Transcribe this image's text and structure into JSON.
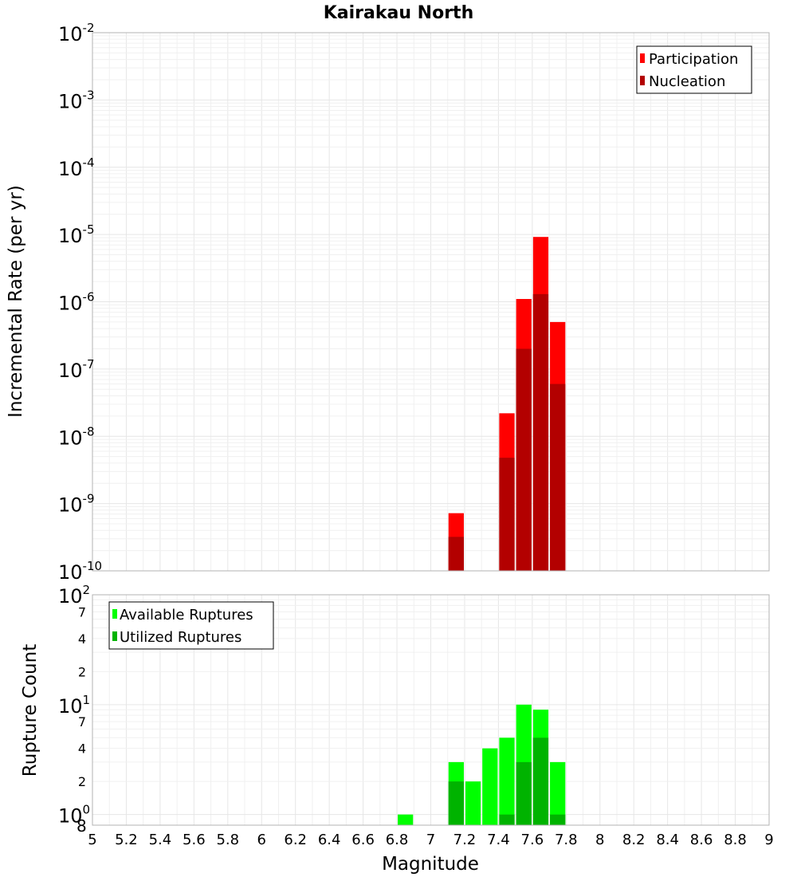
{
  "chart_data": [
    {
      "type": "bar",
      "title": "Kairakau North",
      "xlabel": "",
      "ylabel": "Incremental Rate (per yr)",
      "yscale": "log",
      "ylim": [
        1e-10,
        0.01
      ],
      "xlim": [
        5,
        9
      ],
      "bin_width": 0.1,
      "legend_position": "top-right",
      "y_tick_labels": [
        {
          "base": "10",
          "exp": "-10",
          "value": 1e-10
        },
        {
          "base": "10",
          "exp": "-9",
          "value": 1e-09
        },
        {
          "base": "10",
          "exp": "-8",
          "value": 1e-08
        },
        {
          "base": "10",
          "exp": "-7",
          "value": 1e-07
        },
        {
          "base": "10",
          "exp": "-6",
          "value": 1e-06
        },
        {
          "base": "10",
          "exp": "-5",
          "value": 1e-05
        },
        {
          "base": "10",
          "exp": "-4",
          "value": 0.0001
        },
        {
          "base": "10",
          "exp": "-3",
          "value": 0.001
        },
        {
          "base": "10",
          "exp": "-2",
          "value": 0.01
        }
      ],
      "series": [
        {
          "name": "Participation",
          "color": "#ff0000",
          "points": [
            {
              "x": 7.15,
              "y": 7.2e-10
            },
            {
              "x": 7.45,
              "y": 2.2e-08
            },
            {
              "x": 7.55,
              "y": 1.1e-06
            },
            {
              "x": 7.65,
              "y": 9.2e-06
            },
            {
              "x": 7.75,
              "y": 5e-07
            }
          ]
        },
        {
          "name": "Nucleation",
          "color": "#b30000",
          "points": [
            {
              "x": 7.15,
              "y": 3.2e-10
            },
            {
              "x": 7.45,
              "y": 4.8e-09
            },
            {
              "x": 7.55,
              "y": 2e-07
            },
            {
              "x": 7.65,
              "y": 1.3e-06
            },
            {
              "x": 7.75,
              "y": 6e-08
            }
          ]
        }
      ]
    },
    {
      "type": "bar",
      "title": "",
      "xlabel": "Magnitude",
      "ylabel": "Rupture Count",
      "yscale": "log",
      "ylim": [
        0.8,
        100
      ],
      "xlim": [
        5,
        9
      ],
      "bin_width": 0.1,
      "legend_position": "top-left",
      "x_tick_labels": [
        "5",
        "5.2",
        "5.4",
        "5.6",
        "5.8",
        "6",
        "6.2",
        "6.4",
        "6.6",
        "6.8",
        "7",
        "7.2",
        "7.4",
        "7.6",
        "7.8",
        "8",
        "8.2",
        "8.4",
        "8.6",
        "8.8",
        "9"
      ],
      "y_major_ticks": [
        {
          "base": "10",
          "exp": "0",
          "value": 1
        },
        {
          "base": "10",
          "exp": "1",
          "value": 10
        },
        {
          "base": "10",
          "exp": "2",
          "value": 100
        }
      ],
      "y_minor_ticks": [
        {
          "label": "2",
          "value": 2
        },
        {
          "label": "4",
          "value": 4
        },
        {
          "label": "7",
          "value": 7
        },
        {
          "label": "2",
          "value": 20
        },
        {
          "label": "4",
          "value": 40
        },
        {
          "label": "7",
          "value": 70
        }
      ],
      "y_bottom_label": "8",
      "series": [
        {
          "name": "Available Ruptures",
          "color": "#00ff00",
          "points": [
            {
              "x": 6.85,
              "y": 1
            },
            {
              "x": 7.15,
              "y": 3
            },
            {
              "x": 7.25,
              "y": 2
            },
            {
              "x": 7.35,
              "y": 4
            },
            {
              "x": 7.45,
              "y": 5
            },
            {
              "x": 7.55,
              "y": 10
            },
            {
              "x": 7.65,
              "y": 9
            },
            {
              "x": 7.75,
              "y": 3
            }
          ]
        },
        {
          "name": "Utilized Ruptures",
          "color": "#00b300",
          "points": [
            {
              "x": 7.15,
              "y": 2
            },
            {
              "x": 7.45,
              "y": 1
            },
            {
              "x": 7.55,
              "y": 3
            },
            {
              "x": 7.65,
              "y": 5
            },
            {
              "x": 7.75,
              "y": 1
            }
          ]
        }
      ]
    }
  ]
}
